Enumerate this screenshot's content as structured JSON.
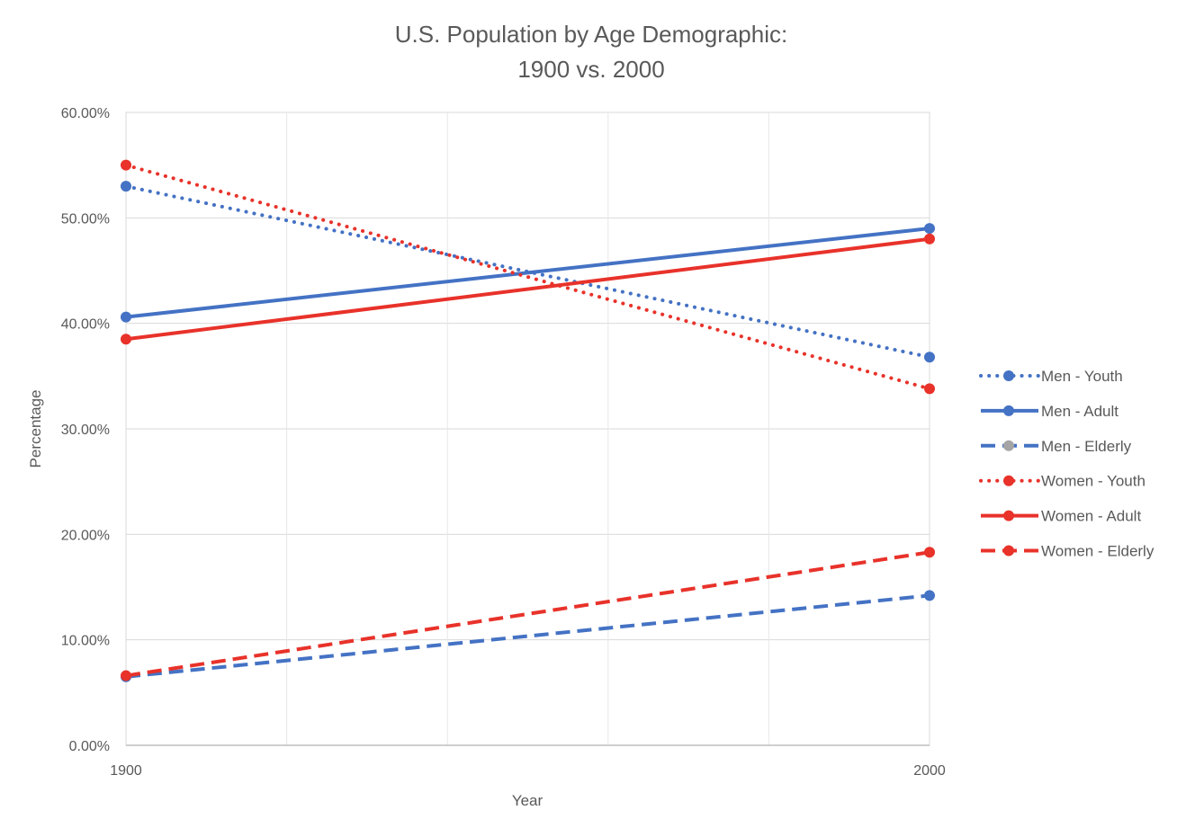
{
  "chart_data": {
    "type": "line",
    "title_line1": "U.S. Population by Age Demographic:",
    "title_line2": "1900 vs. 2000",
    "xlabel": "Year",
    "ylabel": "Percentage",
    "x": [
      "1900",
      "2000"
    ],
    "ylim": [
      0,
      60
    ],
    "yticks": [
      "0.00%",
      "10.00%",
      "20.00%",
      "30.00%",
      "40.00%",
      "50.00%",
      "60.00%"
    ],
    "grid": true,
    "legend_position": "right",
    "series": [
      {
        "name": "Men - Youth",
        "values": [
          53.0,
          36.8
        ],
        "color": "#4472C4",
        "style": "dotted"
      },
      {
        "name": "Men - Adult",
        "values": [
          40.6,
          49.0
        ],
        "color": "#4472C4",
        "style": "solid"
      },
      {
        "name": "Men - Elderly",
        "values": [
          6.5,
          14.2
        ],
        "color": "#4472C4",
        "style": "dashed",
        "marker_color": "#A5A5A5"
      },
      {
        "name": "Women - Youth",
        "values": [
          55.0,
          33.8
        ],
        "color": "#E8322A",
        "style": "dotted"
      },
      {
        "name": "Women - Adult",
        "values": [
          38.5,
          48.0
        ],
        "color": "#E8322A",
        "style": "solid"
      },
      {
        "name": "Women - Elderly",
        "values": [
          6.6,
          18.3
        ],
        "color": "#E8322A",
        "style": "dashed"
      }
    ]
  }
}
